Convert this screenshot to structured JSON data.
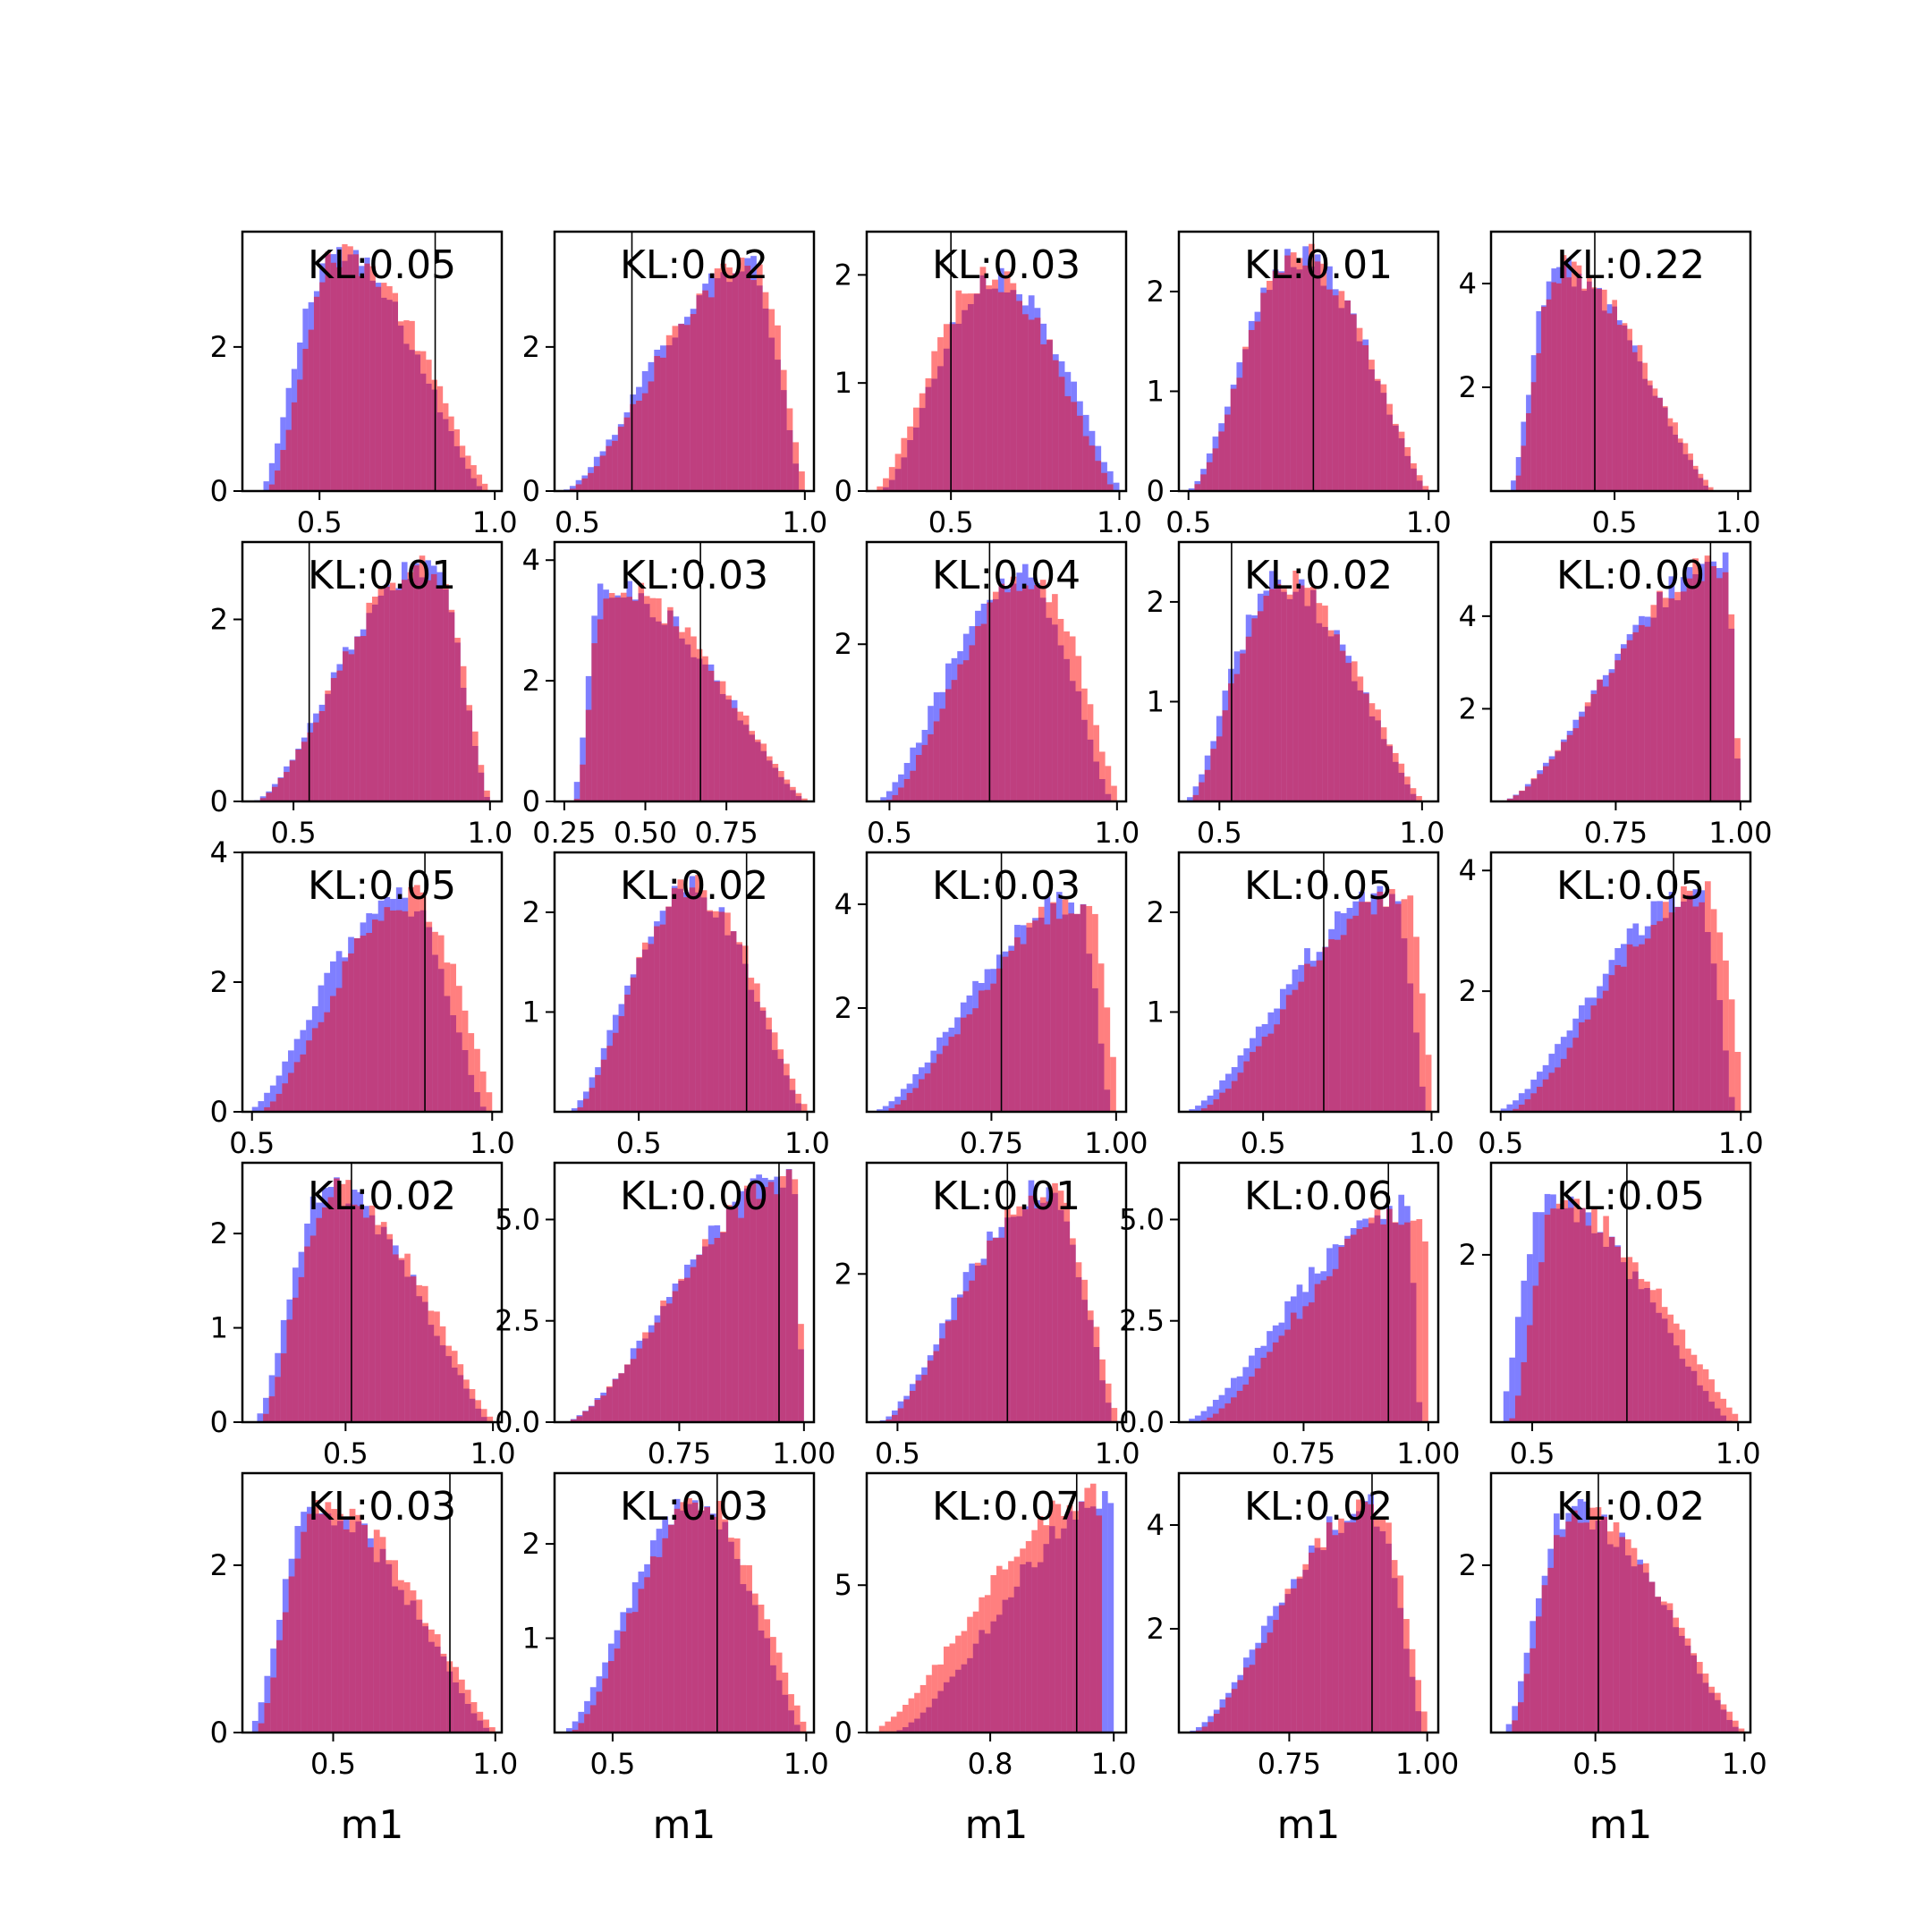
{
  "colors": {
    "real": "#ff0000",
    "generated": "#0000ff",
    "alpha": 0.5,
    "marker_line": "#000000"
  },
  "chart_data": {
    "type": "histogram-grid",
    "rows": 5,
    "cols": 5,
    "xlabel": "m1",
    "series_legend": [],
    "panels": [
      {
        "kl": "KL:0.05",
        "xticks": [
          "0.5",
          "1.0"
        ],
        "xt": [
          0.5,
          1.0
        ],
        "xlim": [
          0.28,
          1.02
        ],
        "yticks": [
          "0",
          "2"
        ],
        "yt": [
          0,
          2
        ],
        "ylim": [
          0,
          3.6
        ],
        "marker": 0.83,
        "dist": {
          "kind": "skew",
          "lo": 0.34,
          "hi": 0.98,
          "mode": 0.55,
          "peak": 3.3
        },
        "diff": {
          "kind": "shift",
          "amt": 0.02
        }
      },
      {
        "kl": "KL:0.02",
        "xticks": [
          "0.5",
          "1.0"
        ],
        "xt": [
          0.5,
          1.0
        ],
        "xlim": [
          0.45,
          1.02
        ],
        "yticks": [
          "0",
          "2"
        ],
        "yt": [
          0,
          2
        ],
        "ylim": [
          0,
          3.6
        ],
        "marker": 0.62,
        "dist": {
          "kind": "skew",
          "lo": 0.47,
          "hi": 1.0,
          "mode": 0.88,
          "peak": 3.15
        },
        "diff": {
          "kind": "shift",
          "amt": 0.01
        }
      },
      {
        "kl": "KL:0.03",
        "xticks": [
          "0.5",
          "1.0"
        ],
        "xt": [
          0.5,
          1.0
        ],
        "xlim": [
          0.25,
          1.02
        ],
        "yticks": [
          "0",
          "1",
          "2"
        ],
        "yt": [
          0,
          1,
          2
        ],
        "ylim": [
          0,
          2.4
        ],
        "marker": 0.5,
        "dist": {
          "kind": "skew",
          "lo": 0.28,
          "hi": 1.0,
          "mode": 0.62,
          "peak": 2.0
        },
        "diff": {
          "kind": "shift",
          "amt": -0.02
        }
      },
      {
        "kl": "KL:0.01",
        "xticks": [
          "0.5",
          "1.0"
        ],
        "xt": [
          0.5,
          1.0
        ],
        "xlim": [
          0.48,
          1.02
        ],
        "yticks": [
          "0",
          "1",
          "2"
        ],
        "yt": [
          0,
          1,
          2
        ],
        "ylim": [
          0,
          2.6
        ],
        "marker": 0.76,
        "dist": {
          "kind": "skew",
          "lo": 0.5,
          "hi": 1.0,
          "mode": 0.73,
          "peak": 2.35
        },
        "diff": {
          "kind": "shift",
          "amt": 0.005
        }
      },
      {
        "kl": "KL:0.22",
        "xticks": [
          "0.5",
          "1.0"
        ],
        "xt": [
          0.5,
          1.0
        ],
        "xlim": [
          0.0,
          1.05
        ],
        "yticks": [
          "2",
          "4"
        ],
        "yt": [
          2,
          4
        ],
        "ylim": [
          0,
          5.0
        ],
        "marker": 0.42,
        "dist": {
          "kind": "skew",
          "lo": 0.08,
          "hi": 0.9,
          "mode": 0.27,
          "peak": 4.3
        },
        "diff": {
          "kind": "shift",
          "amt": 0.015
        }
      },
      {
        "kl": "KL:0.01",
        "xticks": [
          "0.5",
          "1.0"
        ],
        "xt": [
          0.5,
          1.0
        ],
        "xlim": [
          0.37,
          1.03
        ],
        "yticks": [
          "0",
          "2"
        ],
        "yt": [
          0,
          2
        ],
        "ylim": [
          0,
          2.85
        ],
        "marker": 0.54,
        "dist": {
          "kind": "skew",
          "lo": 0.4,
          "hi": 1.0,
          "mode": 0.84,
          "peak": 2.6
        },
        "diff": {
          "kind": "shift",
          "amt": 0.005
        }
      },
      {
        "kl": "KL:0.03",
        "xticks": [
          "0.25",
          "0.50",
          "0.75"
        ],
        "xt": [
          0.25,
          0.5,
          0.75
        ],
        "xlim": [
          0.22,
          1.02
        ],
        "yticks": [
          "0",
          "2",
          "4"
        ],
        "yt": [
          0,
          2,
          4
        ],
        "ylim": [
          0,
          4.3
        ],
        "marker": 0.67,
        "dist": {
          "kind": "skew",
          "lo": 0.28,
          "hi": 1.0,
          "mode": 0.38,
          "peak": 3.6
        },
        "diff": {
          "kind": "shift",
          "amt": 0.01
        }
      },
      {
        "kl": "KL:0.04",
        "xticks": [
          "0.5",
          "1.0"
        ],
        "xt": [
          0.5,
          1.0
        ],
        "xlim": [
          0.45,
          1.02
        ],
        "yticks": [
          "2"
        ],
        "yt": [
          2
        ],
        "ylim": [
          0,
          3.3
        ],
        "marker": 0.72,
        "dist": {
          "kind": "skew",
          "lo": 0.48,
          "hi": 1.0,
          "mode": 0.8,
          "peak": 2.9
        },
        "diff": {
          "kind": "shift",
          "amt": 0.02
        }
      },
      {
        "kl": "KL:0.02",
        "xticks": [
          "0.5",
          "1.0"
        ],
        "xt": [
          0.5,
          1.0
        ],
        "xlim": [
          0.4,
          1.04
        ],
        "yticks": [
          "1",
          "2"
        ],
        "yt": [
          1,
          2
        ],
        "ylim": [
          0,
          2.6
        ],
        "marker": 0.53,
        "dist": {
          "kind": "skew",
          "lo": 0.42,
          "hi": 1.0,
          "mode": 0.65,
          "peak": 2.2
        },
        "diff": {
          "kind": "shift",
          "amt": 0.01
        }
      },
      {
        "kl": "KL:0.00",
        "xticks": [
          "0.75",
          "1.00"
        ],
        "xt": [
          0.75,
          1.0
        ],
        "xlim": [
          0.5,
          1.02
        ],
        "yticks": [
          "2",
          "4"
        ],
        "yt": [
          2,
          4
        ],
        "ylim": [
          0,
          5.6
        ],
        "marker": 0.94,
        "dist": {
          "kind": "skew",
          "lo": 0.52,
          "hi": 1.0,
          "mode": 0.97,
          "peak": 5.1
        },
        "diff": {
          "kind": "shift",
          "amt": 0.002
        }
      },
      {
        "kl": "KL:0.05",
        "xticks": [
          "0.5",
          "1.0"
        ],
        "xt": [
          0.5,
          1.0
        ],
        "xlim": [
          0.48,
          1.02
        ],
        "yticks": [
          "0",
          "2",
          "4"
        ],
        "yt": [
          0,
          2,
          4
        ],
        "ylim": [
          0,
          4.0
        ],
        "marker": 0.86,
        "dist": {
          "kind": "skew",
          "lo": 0.5,
          "hi": 1.0,
          "mode": 0.82,
          "peak": 3.3
        },
        "diff": {
          "kind": "shift",
          "amt": 0.025
        }
      },
      {
        "kl": "KL:0.02",
        "xticks": [
          "0.5",
          "1.0"
        ],
        "xt": [
          0.5,
          1.0
        ],
        "xlim": [
          0.25,
          1.02
        ],
        "yticks": [
          "1",
          "2"
        ],
        "yt": [
          1,
          2
        ],
        "ylim": [
          0,
          2.6
        ],
        "marker": 0.82,
        "dist": {
          "kind": "skew",
          "lo": 0.3,
          "hi": 1.0,
          "mode": 0.65,
          "peak": 2.25
        },
        "diff": {
          "kind": "shift",
          "amt": 0.015
        }
      },
      {
        "kl": "KL:0.03",
        "xticks": [
          "0.75",
          "1.00"
        ],
        "xt": [
          0.75,
          1.0
        ],
        "xlim": [
          0.5,
          1.02
        ],
        "yticks": [
          "2",
          "4"
        ],
        "yt": [
          2,
          4
        ],
        "ylim": [
          0,
          5.0
        ],
        "marker": 0.77,
        "dist": {
          "kind": "skew",
          "lo": 0.52,
          "hi": 1.0,
          "mode": 0.93,
          "peak": 4.1
        },
        "diff": {
          "kind": "shift",
          "amt": 0.02
        }
      },
      {
        "kl": "KL:0.05",
        "xticks": [
          "0.5",
          "1.0"
        ],
        "xt": [
          0.5,
          1.0
        ],
        "xlim": [
          0.25,
          1.02
        ],
        "yticks": [
          "1",
          "2"
        ],
        "yt": [
          1,
          2
        ],
        "ylim": [
          0,
          2.6
        ],
        "marker": 0.68,
        "dist": {
          "kind": "skew",
          "lo": 0.28,
          "hi": 1.0,
          "mode": 0.9,
          "peak": 2.2
        },
        "diff": {
          "kind": "shift",
          "amt": 0.03
        }
      },
      {
        "kl": "KL:0.05",
        "xticks": [
          "0.5",
          "1.0"
        ],
        "xt": [
          0.5,
          1.0
        ],
        "xlim": [
          0.48,
          1.02
        ],
        "yticks": [
          "2",
          "4"
        ],
        "yt": [
          2,
          4
        ],
        "ylim": [
          0,
          4.3
        ],
        "marker": 0.86,
        "dist": {
          "kind": "skew",
          "lo": 0.5,
          "hi": 1.0,
          "mode": 0.92,
          "peak": 3.6
        },
        "diff": {
          "kind": "shift",
          "amt": 0.025
        }
      },
      {
        "kl": "KL:0.02",
        "xticks": [
          "0.5",
          "1.0"
        ],
        "xt": [
          0.5,
          1.0
        ],
        "xlim": [
          0.15,
          1.03
        ],
        "yticks": [
          "0",
          "1",
          "2"
        ],
        "yt": [
          0,
          1,
          2
        ],
        "ylim": [
          0,
          2.75
        ],
        "marker": 0.52,
        "dist": {
          "kind": "skew",
          "lo": 0.2,
          "hi": 1.0,
          "mode": 0.45,
          "peak": 2.45
        },
        "diff": {
          "kind": "shift",
          "amt": 0.02
        }
      },
      {
        "kl": "KL:0.00",
        "xticks": [
          "0.75",
          "1.00"
        ],
        "xt": [
          0.75,
          1.0
        ],
        "xlim": [
          0.5,
          1.02
        ],
        "yticks": [
          "0.0",
          "2.5",
          "5.0"
        ],
        "yt": [
          0,
          2.5,
          5.0
        ],
        "ylim": [
          0,
          6.4
        ],
        "marker": 0.95,
        "dist": {
          "kind": "skew",
          "lo": 0.52,
          "hi": 1.0,
          "mode": 0.98,
          "peak": 6.0
        },
        "diff": {
          "kind": "shift",
          "amt": 0.002
        }
      },
      {
        "kl": "KL:0.01",
        "xticks": [
          "0.5",
          "1.0"
        ],
        "xt": [
          0.5,
          1.0
        ],
        "xlim": [
          0.43,
          1.02
        ],
        "yticks": [
          "2"
        ],
        "yt": [
          2
        ],
        "ylim": [
          0,
          3.5
        ],
        "marker": 0.75,
        "dist": {
          "kind": "skew",
          "lo": 0.46,
          "hi": 1.0,
          "mode": 0.84,
          "peak": 3.1
        },
        "diff": {
          "kind": "shift",
          "amt": 0.01
        }
      },
      {
        "kl": "KL:0.06",
        "xticks": [
          "0.75",
          "1.00"
        ],
        "xt": [
          0.75,
          1.0
        ],
        "xlim": [
          0.5,
          1.02
        ],
        "yticks": [
          "0.0",
          "2.5",
          "5.0"
        ],
        "yt": [
          0,
          2.5,
          5.0
        ],
        "ylim": [
          0,
          6.4
        ],
        "marker": 0.92,
        "dist": {
          "kind": "skew",
          "lo": 0.52,
          "hi": 1.0,
          "mode": 0.97,
          "peak": 5.3
        },
        "diff": {
          "kind": "shift",
          "amt": 0.03
        }
      },
      {
        "kl": "KL:0.05",
        "xticks": [
          "0.5",
          "1.0"
        ],
        "xt": [
          0.5,
          1.0
        ],
        "xlim": [
          0.4,
          1.03
        ],
        "yticks": [
          "2"
        ],
        "yt": [
          2
        ],
        "ylim": [
          0,
          3.1
        ],
        "marker": 0.73,
        "dist": {
          "kind": "skew",
          "lo": 0.43,
          "hi": 1.0,
          "mode": 0.55,
          "peak": 2.6
        },
        "diff": {
          "kind": "shift",
          "amt": 0.03
        }
      },
      {
        "kl": "KL:0.03",
        "xticks": [
          "0.5",
          "1.0"
        ],
        "xt": [
          0.5,
          1.0
        ],
        "xlim": [
          0.22,
          1.02
        ],
        "yticks": [
          "0",
          "2"
        ],
        "yt": [
          0,
          2
        ],
        "ylim": [
          0,
          3.1
        ],
        "marker": 0.86,
        "dist": {
          "kind": "skew",
          "lo": 0.25,
          "hi": 1.0,
          "mode": 0.45,
          "peak": 2.7
        },
        "diff": {
          "kind": "shift",
          "amt": 0.02
        }
      },
      {
        "kl": "KL:0.03",
        "xticks": [
          "0.5",
          "1.0"
        ],
        "xt": [
          0.5,
          1.0
        ],
        "xlim": [
          0.35,
          1.02
        ],
        "yticks": [
          "1",
          "2"
        ],
        "yt": [
          1,
          2
        ],
        "ylim": [
          0,
          2.75
        ],
        "marker": 0.77,
        "dist": {
          "kind": "skew",
          "lo": 0.38,
          "hi": 1.0,
          "mode": 0.72,
          "peak": 2.4
        },
        "diff": {
          "kind": "shift",
          "amt": 0.02
        }
      },
      {
        "kl": "KL:0.07",
        "xticks": [
          "0.8",
          "1.0"
        ],
        "xt": [
          0.8,
          1.0
        ],
        "xlim": [
          0.6,
          1.02
        ],
        "yticks": [
          "0",
          "5"
        ],
        "yt": [
          0,
          5
        ],
        "ylim": [
          0,
          8.8
        ],
        "marker": 0.94,
        "dist": {
          "kind": "skew",
          "lo": 0.62,
          "hi": 1.0,
          "mode": 0.995,
          "peak": 8.0
        },
        "diff": {
          "kind": "shift",
          "amt": -0.04
        }
      },
      {
        "kl": "KL:0.02",
        "xticks": [
          "0.75",
          "1.00"
        ],
        "xt": [
          0.75,
          1.0
        ],
        "xlim": [
          0.55,
          1.02
        ],
        "yticks": [
          "2",
          "4"
        ],
        "yt": [
          2,
          4
        ],
        "ylim": [
          0,
          5.0
        ],
        "marker": 0.9,
        "dist": {
          "kind": "skew",
          "lo": 0.57,
          "hi": 1.0,
          "mode": 0.9,
          "peak": 4.3
        },
        "diff": {
          "kind": "shift",
          "amt": 0.01
        }
      },
      {
        "kl": "KL:0.02",
        "xticks": [
          "0.5",
          "1.0"
        ],
        "xt": [
          0.5,
          1.0
        ],
        "xlim": [
          0.15,
          1.02
        ],
        "yticks": [
          "2"
        ],
        "yt": [
          2
        ],
        "ylim": [
          0,
          3.1
        ],
        "marker": 0.51,
        "dist": {
          "kind": "skew",
          "lo": 0.2,
          "hi": 1.0,
          "mode": 0.42,
          "peak": 2.65
        },
        "diff": {
          "kind": "shift",
          "amt": 0.015
        }
      }
    ]
  }
}
